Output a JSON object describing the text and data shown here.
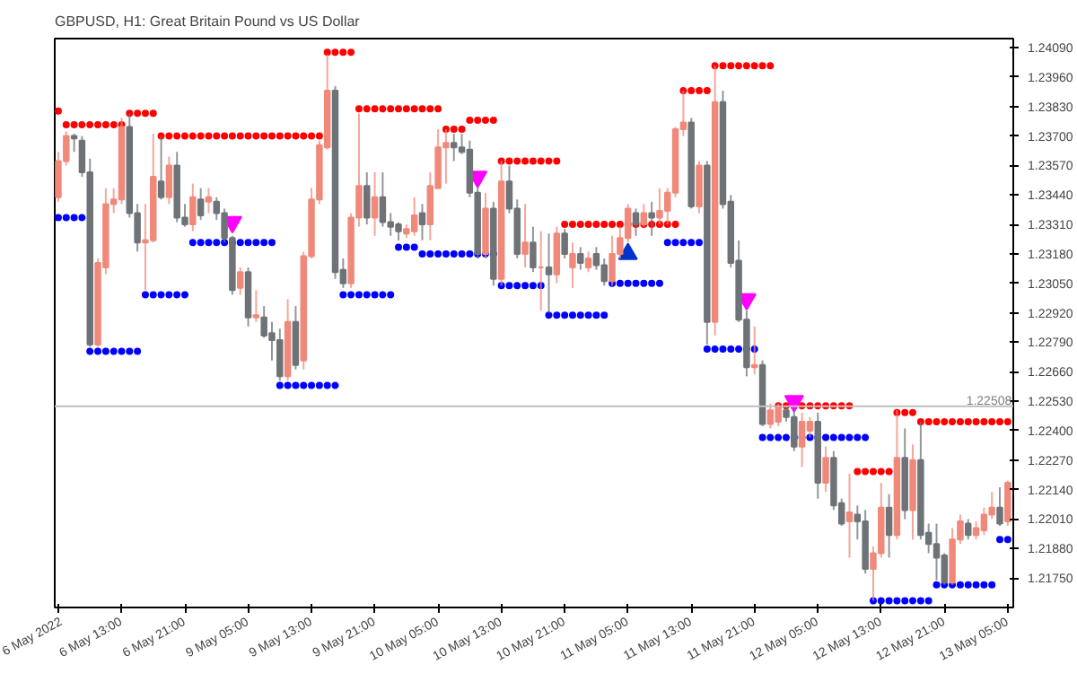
{
  "chart_data": {
    "type": "candlestick",
    "title": "GBPUSD, H1:  Great Britain Pound vs US Dollar",
    "categories": [
      "6 May 2022",
      null,
      null,
      null,
      null,
      null,
      null,
      null,
      "6 May 13:00",
      null,
      null,
      null,
      null,
      null,
      null,
      null,
      "6 May 21:00",
      null,
      null,
      null,
      null,
      null,
      null,
      null,
      "9 May 05:00",
      null,
      null,
      null,
      null,
      null,
      null,
      null,
      "9 May 13:00",
      null,
      null,
      null,
      null,
      null,
      null,
      null,
      "9 May 21:00",
      null,
      null,
      null,
      null,
      null,
      null,
      null,
      "10 May 05:00",
      null,
      null,
      null,
      null,
      null,
      null,
      null,
      "10 May 13:00",
      null,
      null,
      null,
      null,
      null,
      null,
      null,
      "10 May 21:00",
      null,
      null,
      null,
      null,
      null,
      null,
      null,
      "11 May 05:00",
      null,
      null,
      null,
      null,
      null,
      null,
      null,
      "11 May 13:00",
      null,
      null,
      null,
      null,
      null,
      null,
      null,
      "11 May 21:00",
      null,
      null,
      null,
      null,
      null,
      null,
      null,
      "12 May 05:00",
      null,
      null,
      null,
      null,
      null,
      null,
      null,
      "12 May 13:00",
      null,
      null,
      null,
      null,
      null,
      null,
      null,
      "12 May 21:00",
      null,
      null,
      null,
      null,
      null,
      null,
      null,
      "13 May 05:00"
    ],
    "ohlc": [
      [
        1.2343,
        1.2363,
        1.2341,
        1.2359
      ],
      [
        1.2359,
        1.2372,
        1.2357,
        1.237
      ],
      [
        1.237,
        1.2371,
        1.2363,
        1.2369
      ],
      [
        1.2368,
        1.237,
        1.2352,
        1.2354
      ],
      [
        1.2354,
        1.236,
        1.2277,
        1.2278
      ],
      [
        1.2278,
        1.2316,
        1.2277,
        1.2314
      ],
      [
        1.2312,
        1.2347,
        1.2309,
        1.234
      ],
      [
        1.234,
        1.2347,
        1.2336,
        1.2342
      ],
      [
        1.2342,
        1.2378,
        1.234,
        1.2374
      ],
      [
        1.2374,
        1.238,
        1.2334,
        1.2336
      ],
      [
        1.2336,
        1.234,
        1.2319,
        1.2323
      ],
      [
        1.2323,
        1.234,
        1.2302,
        1.2324
      ],
      [
        1.2324,
        1.2371,
        1.2323,
        1.2352
      ],
      [
        1.235,
        1.237,
        1.2342,
        1.2343
      ],
      [
        1.2343,
        1.2361,
        1.234,
        1.2357
      ],
      [
        1.2357,
        1.2363,
        1.2332,
        1.2334
      ],
      [
        1.2334,
        1.234,
        1.233,
        1.2331
      ],
      [
        1.2331,
        1.2349,
        1.2328,
        1.2343
      ],
      [
        1.2342,
        1.2347,
        1.2333,
        1.2335
      ],
      [
        1.2341,
        1.2347,
        1.2336,
        1.2343
      ],
      [
        1.2341,
        1.2343,
        1.2333,
        1.2336
      ],
      [
        1.2336,
        1.2338,
        1.2323,
        1.2325
      ],
      [
        1.2325,
        1.2326,
        1.23,
        1.2302
      ],
      [
        1.2303,
        1.2312,
        1.23,
        1.231
      ],
      [
        1.231,
        1.2312,
        1.2286,
        1.229
      ],
      [
        1.229,
        1.2302,
        1.2288,
        1.2291
      ],
      [
        1.229,
        1.2295,
        1.2281,
        1.2282
      ],
      [
        1.2283,
        1.2288,
        1.2271,
        1.228
      ],
      [
        1.228,
        1.2285,
        1.2262,
        1.2264
      ],
      [
        1.2264,
        1.2298,
        1.2262,
        1.2288
      ],
      [
        1.2288,
        1.2295,
        1.2267,
        1.2269
      ],
      [
        1.2271,
        1.2319,
        1.2267,
        1.2317
      ],
      [
        1.2317,
        1.2347,
        1.2316,
        1.2342
      ],
      [
        1.2342,
        1.2368,
        1.234,
        1.2366
      ],
      [
        1.2365,
        1.2406,
        1.2364,
        1.239
      ],
      [
        1.239,
        1.2392,
        1.2307,
        1.231
      ],
      [
        1.2311,
        1.2316,
        1.2303,
        1.2305
      ],
      [
        1.2305,
        1.2336,
        1.2303,
        1.2334
      ],
      [
        1.2334,
        1.238,
        1.233,
        1.2348
      ],
      [
        1.2348,
        1.2354,
        1.2331,
        1.2334
      ],
      [
        1.2334,
        1.2354,
        1.2326,
        1.2343
      ],
      [
        1.2343,
        1.2354,
        1.233,
        1.2332
      ],
      [
        1.2332,
        1.2336,
        1.2326,
        1.233
      ],
      [
        1.2331,
        1.2332,
        1.2324,
        1.2328
      ],
      [
        1.2327,
        1.2331,
        1.2325,
        1.2329
      ],
      [
        1.2328,
        1.2343,
        1.2326,
        1.2335
      ],
      [
        1.2336,
        1.234,
        1.2324,
        1.2331
      ],
      [
        1.2331,
        1.2354,
        1.2324,
        1.2348
      ],
      [
        1.2347,
        1.2373,
        1.2347,
        1.2365
      ],
      [
        1.2365,
        1.2373,
        1.2349,
        1.2367
      ],
      [
        1.2367,
        1.2371,
        1.2359,
        1.2365
      ],
      [
        1.2365,
        1.2371,
        1.2362,
        1.2363
      ],
      [
        1.2364,
        1.2368,
        1.2343,
        1.2345
      ],
      [
        1.2345,
        1.2348,
        1.2316,
        1.2318
      ],
      [
        1.2318,
        1.2345,
        1.2316,
        1.2338
      ],
      [
        1.2338,
        1.2341,
        1.2304,
        1.2307
      ],
      [
        1.2307,
        1.2359,
        1.2304,
        1.235
      ],
      [
        1.235,
        1.2357,
        1.2336,
        1.2338
      ],
      [
        1.2338,
        1.2342,
        1.2316,
        1.2318
      ],
      [
        1.2318,
        1.234,
        1.2312,
        1.2323
      ],
      [
        1.2323,
        1.233,
        1.231,
        1.2312
      ],
      [
        1.2312,
        1.2328,
        1.2293,
        1.2312
      ],
      [
        1.2312,
        1.2327,
        1.2292,
        1.2309
      ],
      [
        1.2309,
        1.233,
        1.2305,
        1.2327
      ],
      [
        1.2327,
        1.2329,
        1.2316,
        1.2318
      ],
      [
        1.2312,
        1.2323,
        1.2303,
        1.2318
      ],
      [
        1.2318,
        1.2321,
        1.2311,
        1.2314
      ],
      [
        1.2312,
        1.2319,
        1.231,
        1.2316
      ],
      [
        1.2318,
        1.2321,
        1.2311,
        1.2313
      ],
      [
        1.2313,
        1.2316,
        1.2304,
        1.2306
      ],
      [
        1.2306,
        1.2326,
        1.2304,
        1.2318
      ],
      [
        1.2318,
        1.233,
        1.2316,
        1.2325
      ],
      [
        1.2325,
        1.234,
        1.2323,
        1.2338
      ],
      [
        1.2336,
        1.2338,
        1.2326,
        1.2331
      ],
      [
        1.2331,
        1.234,
        1.233,
        1.2336
      ],
      [
        1.2336,
        1.2341,
        1.2326,
        1.2334
      ],
      [
        1.2334,
        1.2347,
        1.2331,
        1.2337
      ],
      [
        1.2337,
        1.2347,
        1.2331,
        1.2345
      ],
      [
        1.2345,
        1.2374,
        1.2343,
        1.2373
      ],
      [
        1.2373,
        1.239,
        1.237,
        1.2376
      ],
      [
        1.2376,
        1.2378,
        1.2338,
        1.2339
      ],
      [
        1.2339,
        1.2359,
        1.2336,
        1.2357
      ],
      [
        1.2357,
        1.2359,
        1.2278,
        1.2288
      ],
      [
        1.2288,
        1.2401,
        1.2282,
        1.2385
      ],
      [
        1.2385,
        1.239,
        1.2338,
        1.234
      ],
      [
        1.2341,
        1.2344,
        1.2312,
        1.2314
      ],
      [
        1.2315,
        1.2324,
        1.2288,
        1.2289
      ],
      [
        1.2289,
        1.2293,
        1.2264,
        1.2268
      ],
      [
        1.2268,
        1.2286,
        1.2265,
        1.2269
      ],
      [
        1.2269,
        1.2271,
        1.2242,
        1.2243
      ],
      [
        1.2243,
        1.2252,
        1.2241,
        1.2249
      ],
      [
        1.2244,
        1.2252,
        1.2242,
        1.225
      ],
      [
        1.2249,
        1.2251,
        1.2244,
        1.2246
      ],
      [
        1.2246,
        1.2249,
        1.2231,
        1.2233
      ],
      [
        1.2233,
        1.2248,
        1.2224,
        1.2244
      ],
      [
        1.224,
        1.2246,
        1.2237,
        1.2244
      ],
      [
        1.2244,
        1.2248,
        1.221,
        1.2217
      ],
      [
        1.2217,
        1.2233,
        1.2213,
        1.2228
      ],
      [
        1.2228,
        1.2231,
        1.2205,
        1.2207
      ],
      [
        1.2208,
        1.221,
        1.2198,
        1.2199
      ],
      [
        1.22,
        1.2221,
        1.2184,
        1.2204
      ],
      [
        1.2203,
        1.2207,
        1.2192,
        1.22
      ],
      [
        1.22,
        1.2205,
        1.2177,
        1.2179
      ],
      [
        1.2179,
        1.2189,
        1.2165,
        1.2186
      ],
      [
        1.2186,
        1.2217,
        1.2184,
        1.2206
      ],
      [
        1.2206,
        1.2212,
        1.2184,
        1.2194
      ],
      [
        1.2194,
        1.2249,
        1.2192,
        1.2228
      ],
      [
        1.2228,
        1.2241,
        1.2201,
        1.2205
      ],
      [
        1.2205,
        1.2234,
        1.2192,
        1.2227
      ],
      [
        1.2227,
        1.2244,
        1.2192,
        1.2194
      ],
      [
        1.2195,
        1.2199,
        1.2186,
        1.219
      ],
      [
        1.219,
        1.2199,
        1.2174,
        1.2184
      ],
      [
        1.2185,
        1.2186,
        1.2172,
        1.2173
      ],
      [
        1.2173,
        1.2197,
        1.2172,
        1.2192
      ],
      [
        1.2192,
        1.2203,
        1.219,
        1.22
      ],
      [
        1.2199,
        1.2201,
        1.2192,
        1.2194
      ],
      [
        1.2194,
        1.22,
        1.2192,
        1.2197
      ],
      [
        1.2196,
        1.2206,
        1.2194,
        1.2203
      ],
      [
        1.2203,
        1.2213,
        1.2201,
        1.2206
      ],
      [
        1.2206,
        1.2215,
        1.2198,
        1.2199
      ],
      [
        1.22,
        1.2218,
        1.2198,
        1.2217
      ]
    ],
    "colors": [
      "#f0897a",
      "#f0897a",
      "#6e7378",
      "#6e7378",
      "#6e7378",
      "#f0897a",
      "#f0897a",
      "#f0897a",
      "#f0897a",
      "#6e7378",
      "#6e7378",
      "#f0897a",
      "#f0897a",
      "#6e7378",
      "#f0897a",
      "#6e7378",
      "#6e7378",
      "#f0897a",
      "#6e7378",
      "#f0897a",
      "#6e7378",
      "#6e7378",
      "#6e7378",
      "#f0897a",
      "#6e7378",
      "#f0897a",
      "#6e7378",
      "#6e7378",
      "#6e7378",
      "#f0897a",
      "#6e7378",
      "#f0897a",
      "#f0897a",
      "#f0897a",
      "#f0897a",
      "#6e7378",
      "#6e7378",
      "#f0897a",
      "#f0897a",
      "#6e7378",
      "#f0897a",
      "#6e7378",
      "#6e7378",
      "#6e7378",
      "#f0897a",
      "#f0897a",
      "#6e7378",
      "#f0897a",
      "#f0897a",
      "#f0897a",
      "#6e7378",
      "#6e7378",
      "#6e7378",
      "#6e7378",
      "#f0897a",
      "#6e7378",
      "#f0897a",
      "#6e7378",
      "#6e7378",
      "#f0897a",
      "#6e7378",
      "#f0897a",
      "#6e7378",
      "#f0897a",
      "#6e7378",
      "#f0897a",
      "#6e7378",
      "#f0897a",
      "#6e7378",
      "#6e7378",
      "#f0897a",
      "#f0897a",
      "#f0897a",
      "#6e7378",
      "#f0897a",
      "#6e7378",
      "#f0897a",
      "#f0897a",
      "#f0897a",
      "#f0897a",
      "#6e7378",
      "#f0897a",
      "#6e7378",
      "#f0897a",
      "#6e7378",
      "#6e7378",
      "#6e7378",
      "#6e7378",
      "#f0897a",
      "#6e7378",
      "#f0897a",
      "#f0897a",
      "#6e7378",
      "#6e7378",
      "#f0897a",
      "#f0897a",
      "#6e7378",
      "#f0897a",
      "#6e7378",
      "#6e7378",
      "#f0897a",
      "#6e7378",
      "#6e7378",
      "#f0897a",
      "#f0897a",
      "#6e7378",
      "#f0897a",
      "#6e7378",
      "#f0897a",
      "#6e7378",
      "#6e7378",
      "#6e7378",
      "#6e7378",
      "#f0897a",
      "#f0897a",
      "#6e7378",
      "#f0897a",
      "#f0897a",
      "#f0897a",
      "#6e7378",
      "#f0897a"
    ],
    "series": [
      {
        "type": "scatter",
        "marker": "circle",
        "color": "#ff0000",
        "values": [
          1.2381,
          1.2375,
          1.2375,
          1.2375,
          1.2375,
          1.2375,
          1.2375,
          1.2375,
          1.2375,
          1.238,
          1.238,
          1.238,
          1.238,
          1.237,
          1.237,
          1.237,
          1.237,
          1.237,
          1.237,
          1.237,
          1.237,
          1.237,
          1.237,
          1.237,
          1.237,
          1.237,
          1.237,
          1.237,
          1.237,
          1.237,
          1.237,
          1.237,
          1.237,
          1.237,
          1.2407,
          1.2407,
          1.2407,
          1.2407,
          1.2382,
          1.2382,
          1.2382,
          1.2382,
          1.2382,
          1.2382,
          1.2382,
          1.2382,
          1.2382,
          1.2382,
          1.2382,
          1.2373,
          1.2373,
          1.2373,
          1.2377,
          1.2377,
          1.2377,
          1.2377,
          1.2359,
          1.2359,
          1.2359,
          1.2359,
          1.2359,
          1.2359,
          1.2359,
          1.2359,
          1.2331,
          1.2331,
          1.2331,
          1.2331,
          1.2331,
          1.2331,
          1.2331,
          1.2331,
          1.2331,
          1.2331,
          1.2331,
          1.2331,
          1.2331,
          1.2331,
          1.2331,
          1.239,
          1.239,
          1.239,
          1.239,
          1.2401,
          1.2401,
          1.2401,
          1.2401,
          1.2401,
          1.2401,
          1.2401,
          1.2401,
          1.2251,
          1.2251,
          1.2251,
          1.2251,
          1.2251,
          1.2251,
          1.2251,
          1.2251,
          1.2251,
          1.2251,
          1.2222,
          1.2222,
          1.2222,
          1.2222,
          1.2222,
          1.2248,
          1.2248,
          1.2248,
          1.2244,
          1.2244,
          1.2244,
          1.2244,
          1.2244,
          1.2244,
          1.2244,
          1.2244,
          1.2244,
          1.2244,
          1.2244,
          1.2244
        ]
      },
      {
        "type": "scatter",
        "marker": "circle",
        "color": "#0000ff",
        "values": [
          1.2334,
          1.2334,
          1.2334,
          1.2334,
          1.2275,
          1.2275,
          1.2275,
          1.2275,
          1.2275,
          1.2275,
          1.2275,
          1.23,
          1.23,
          1.23,
          1.23,
          1.23,
          1.23,
          1.2323,
          1.2323,
          1.2323,
          1.2323,
          1.2323,
          1.2323,
          1.2323,
          1.2323,
          1.2323,
          1.2323,
          1.2323,
          1.226,
          1.226,
          1.226,
          1.226,
          1.226,
          1.226,
          1.226,
          1.226,
          1.23,
          1.23,
          1.23,
          1.23,
          1.23,
          1.23,
          1.23,
          1.2321,
          1.2321,
          1.2321,
          1.2318,
          1.2318,
          1.2318,
          1.2318,
          1.2318,
          1.2318,
          1.2318,
          1.2318,
          1.2318,
          1.2318,
          1.2304,
          1.2304,
          1.2304,
          1.2304,
          1.2304,
          1.2304,
          1.2291,
          1.2291,
          1.2291,
          1.2291,
          1.2291,
          1.2291,
          1.2291,
          1.2291,
          1.2305,
          1.2305,
          1.2305,
          1.2305,
          1.2305,
          1.2305,
          1.2305,
          1.2323,
          1.2323,
          1.2323,
          1.2323,
          1.2323,
          1.2276,
          1.2276,
          1.2276,
          1.2276,
          1.2276,
          1.2276,
          1.2276,
          1.2237,
          1.2237,
          1.2237,
          1.2237,
          1.2237,
          1.2237,
          1.2237,
          1.2237,
          1.2237,
          1.2237,
          1.2237,
          1.2237,
          1.2237,
          1.2237,
          1.2165,
          1.2165,
          1.2165,
          1.2165,
          1.2165,
          1.2165,
          1.2165,
          1.2165,
          1.2172,
          1.2172,
          1.2172,
          1.2172,
          1.2172,
          1.2172,
          1.2172,
          1.2172,
          1.2192,
          1.2192
        ]
      },
      {
        "type": "scatter",
        "marker": "triangle",
        "color": "#ff00ff",
        "values": [
          null,
          null,
          null,
          null,
          null,
          null,
          null,
          null,
          null,
          null,
          null,
          null,
          null,
          null,
          null,
          null,
          null,
          null,
          null,
          null,
          null,
          null,
          1.2332,
          null,
          null,
          null,
          null,
          null,
          null,
          null,
          null,
          null,
          null,
          null,
          null,
          null,
          null,
          null,
          null,
          null,
          null,
          null,
          null,
          null,
          null,
          null,
          null,
          null,
          null,
          null,
          null,
          null,
          null,
          1.2352,
          null,
          null,
          null,
          null,
          null,
          null,
          null,
          null,
          null,
          null,
          null,
          null,
          null,
          null,
          null,
          null,
          null,
          null,
          null,
          null,
          null,
          null,
          null,
          null,
          null,
          null,
          null,
          null,
          null,
          null,
          null,
          null,
          null,
          1.2298,
          null,
          null,
          null,
          null,
          null,
          1.2253,
          null,
          null,
          null,
          null,
          null,
          null,
          null,
          null,
          null,
          null,
          null,
          null,
          null,
          null,
          null,
          null,
          null,
          null,
          null,
          null,
          null,
          null,
          null,
          null,
          null,
          null,
          null
        ]
      },
      {
        "type": "scatter",
        "marker": "triangle",
        "color": "#0033cc",
        "values": [
          null,
          null,
          null,
          null,
          null,
          null,
          null,
          null,
          null,
          null,
          null,
          null,
          null,
          null,
          null,
          null,
          null,
          null,
          null,
          null,
          null,
          null,
          null,
          null,
          null,
          null,
          null,
          null,
          null,
          null,
          null,
          null,
          null,
          null,
          null,
          null,
          null,
          null,
          null,
          null,
          null,
          null,
          null,
          null,
          null,
          null,
          null,
          null,
          null,
          null,
          null,
          null,
          null,
          null,
          null,
          null,
          null,
          null,
          null,
          null,
          null,
          null,
          null,
          null,
          null,
          null,
          null,
          null,
          null,
          null,
          null,
          null,
          1.2318,
          null,
          null,
          null,
          null,
          null,
          null,
          null,
          null,
          null,
          null,
          null,
          null,
          null,
          null,
          null,
          null,
          null,
          null,
          null,
          null,
          null,
          null,
          null,
          null,
          null,
          null,
          null,
          null,
          null,
          null,
          null,
          null,
          null,
          null,
          null,
          null,
          null,
          null,
          null,
          null,
          null,
          null,
          null,
          null,
          null,
          null,
          null,
          null
        ]
      }
    ],
    "ylim": [
      1.2162,
      1.2413
    ],
    "yticks": [
      {
        "value": 1.2409,
        "label": "1.24090"
      },
      {
        "value": 1.2396,
        "label": "1.23960"
      },
      {
        "value": 1.2383,
        "label": "1.23830"
      },
      {
        "value": 1.237,
        "label": "1.23700"
      },
      {
        "value": 1.2357,
        "label": "1.23570"
      },
      {
        "value": 1.2344,
        "label": "1.23440"
      },
      {
        "value": 1.2331,
        "label": "1.23310"
      },
      {
        "value": 1.2318,
        "label": "1.23180"
      },
      {
        "value": 1.2305,
        "label": "1.23050"
      },
      {
        "value": 1.2292,
        "label": "1.22920"
      },
      {
        "value": 1.2279,
        "label": "1.22790"
      },
      {
        "value": 1.2266,
        "label": "1.22660"
      },
      {
        "value": 1.2253,
        "label": "1.22530"
      },
      {
        "value": 1.224,
        "label": "1.22400"
      },
      {
        "value": 1.2227,
        "label": "1.22270"
      },
      {
        "value": 1.2214,
        "label": "1.22140"
      },
      {
        "value": 1.2201,
        "label": "1.22010"
      },
      {
        "value": 1.2188,
        "label": "1.21880"
      },
      {
        "value": 1.2175,
        "label": "1.21750"
      }
    ],
    "ref_lines": [
      {
        "axis": "y",
        "value": 1.22508,
        "label": "1.22508",
        "color": "#c0c0c0"
      }
    ],
    "grid": false
  }
}
